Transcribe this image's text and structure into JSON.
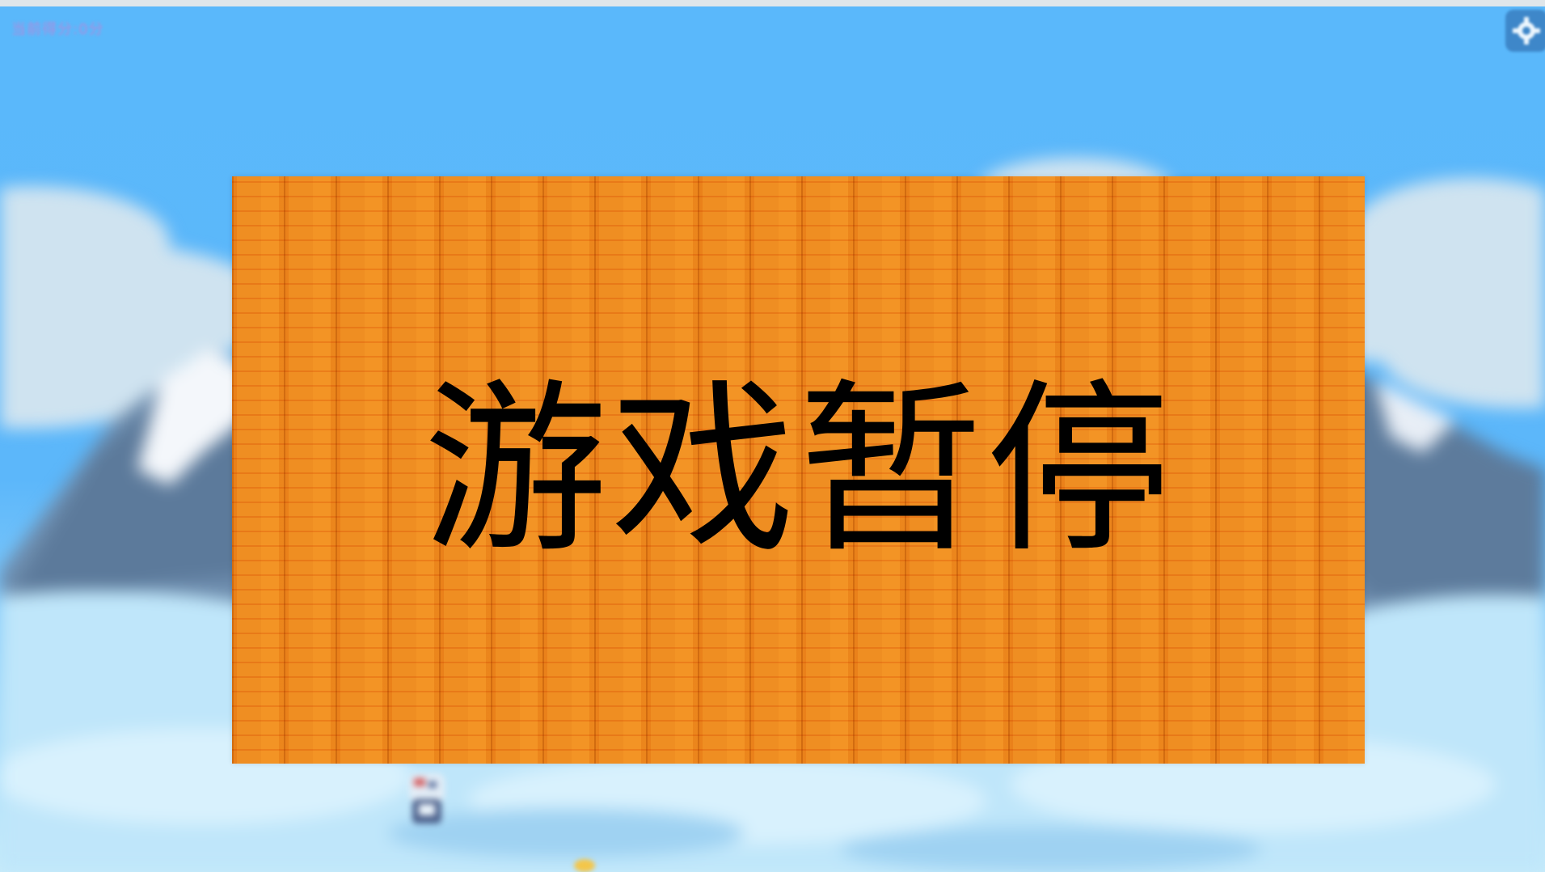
{
  "game": {
    "top_label": "当前得分:0分",
    "pause_title": "游戏暂停",
    "settings_icon": "gear-icon"
  },
  "colors": {
    "sky": "#5ab8fb",
    "panel_wood": "#f6bb58",
    "title_text": "#000000",
    "top_label": "#f268c6",
    "settings_button": "#3b82c4"
  }
}
